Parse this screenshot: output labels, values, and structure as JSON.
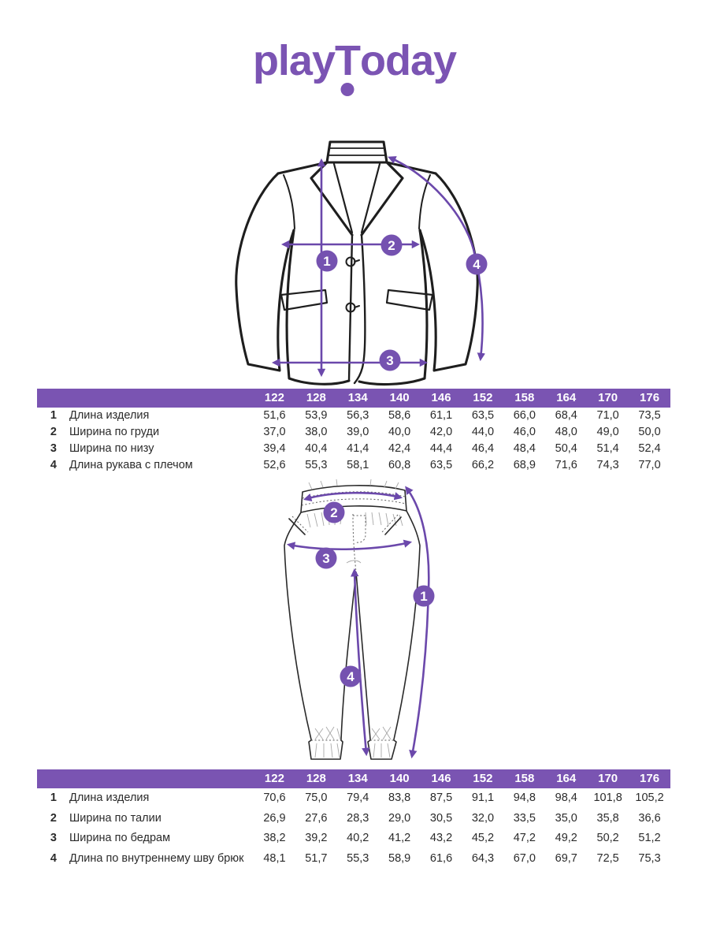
{
  "brand": {
    "logo_part1": "play",
    "logo_part2": "T",
    "logo_part3": "oday"
  },
  "colors": {
    "accent_purple": "#7a54b2",
    "arrow_purple": "#6b48ab",
    "badge_purple": "#7552b0",
    "outline_black": "#1e1e1e"
  },
  "sizes": [
    "122",
    "128",
    "134",
    "140",
    "146",
    "152",
    "158",
    "164",
    "170",
    "176"
  ],
  "jacket": {
    "diagram_markers": [
      "1",
      "2",
      "3",
      "4"
    ],
    "table": {
      "rows": [
        {
          "num": "1",
          "label": "Длина изделия",
          "values": [
            "51,6",
            "53,9",
            "56,3",
            "58,6",
            "61,1",
            "63,5",
            "66,0",
            "68,4",
            "71,0",
            "73,5"
          ]
        },
        {
          "num": "2",
          "label": "Ширина по груди",
          "values": [
            "37,0",
            "38,0",
            "39,0",
            "40,0",
            "42,0",
            "44,0",
            "46,0",
            "48,0",
            "49,0",
            "50,0"
          ]
        },
        {
          "num": "3",
          "label": "Ширина по низу",
          "values": [
            "39,4",
            "40,4",
            "41,4",
            "42,4",
            "44,4",
            "46,4",
            "48,4",
            "50,4",
            "51,4",
            "52,4"
          ]
        },
        {
          "num": "4",
          "label": "Длина рукава с плечом",
          "values": [
            "52,6",
            "55,3",
            "58,1",
            "60,8",
            "63,5",
            "66,2",
            "68,9",
            "71,6",
            "74,3",
            "77,0"
          ]
        }
      ]
    }
  },
  "pants": {
    "diagram_markers": [
      "1",
      "2",
      "3",
      "4"
    ],
    "table": {
      "rows": [
        {
          "num": "1",
          "label": "Длина изделия",
          "values": [
            "70,6",
            "75,0",
            "79,4",
            "83,8",
            "87,5",
            "91,1",
            "94,8",
            "98,4",
            "101,8",
            "105,2"
          ]
        },
        {
          "num": "2",
          "label": "Ширина по талии",
          "values": [
            "26,9",
            "27,6",
            "28,3",
            "29,0",
            "30,5",
            "32,0",
            "33,5",
            "35,0",
            "35,8",
            "36,6"
          ]
        },
        {
          "num": "3",
          "label": "Ширина по бедрам",
          "values": [
            "38,2",
            "39,2",
            "40,2",
            "41,2",
            "43,2",
            "45,2",
            "47,2",
            "49,2",
            "50,2",
            "51,2"
          ]
        },
        {
          "num": "4",
          "label": "Длина по внутреннему шву брюк",
          "values": [
            "48,1",
            "51,7",
            "55,3",
            "58,9",
            "61,6",
            "64,3",
            "67,0",
            "69,7",
            "72,5",
            "75,3"
          ]
        }
      ]
    }
  }
}
